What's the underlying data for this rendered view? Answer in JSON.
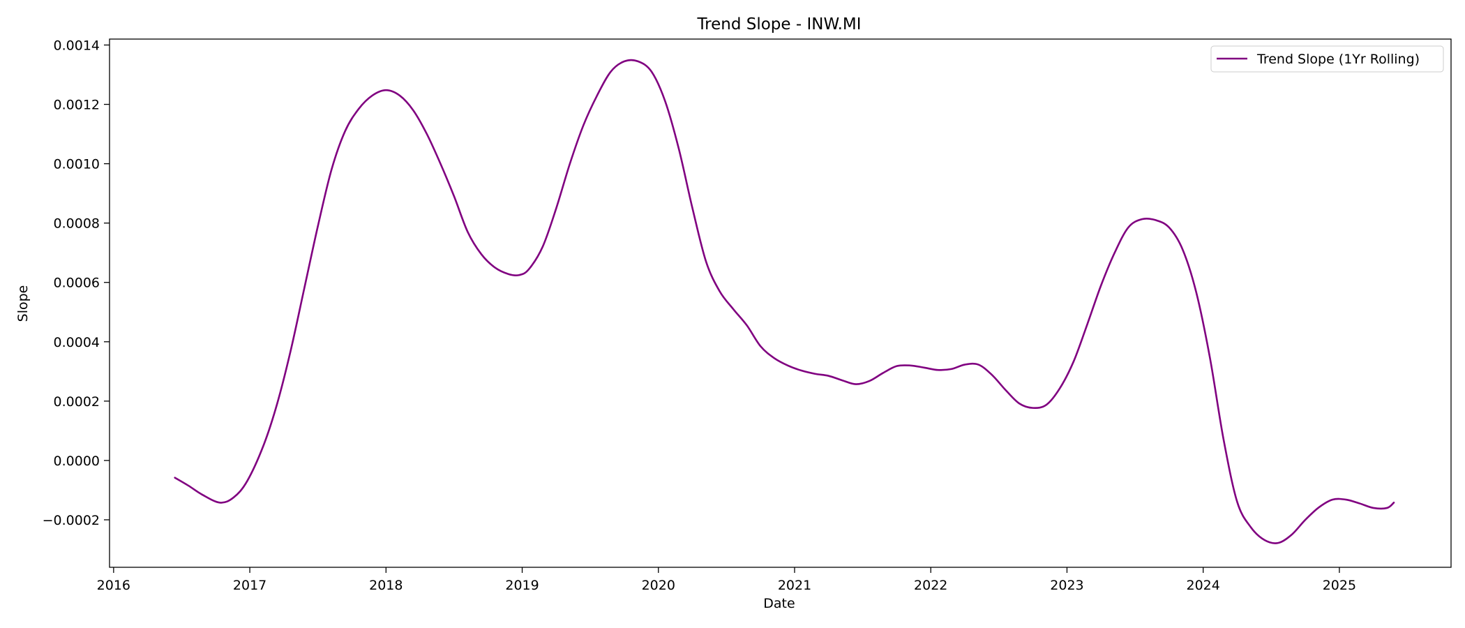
{
  "chart_data": {
    "type": "line",
    "title": "Trend Slope - INW.MI",
    "xlabel": "Date",
    "ylabel": "Slope",
    "xlim": [
      2015.97,
      2025.82
    ],
    "ylim": [
      -0.00036,
      0.00142
    ],
    "x_ticks": [
      2016,
      2017,
      2018,
      2019,
      2020,
      2021,
      2022,
      2023,
      2024,
      2025
    ],
    "y_ticks": [
      -0.0002,
      0.0,
      0.0002,
      0.0004,
      0.0006,
      0.0008,
      0.001,
      0.0012,
      0.0014
    ],
    "y_tick_labels": [
      "−0.0002",
      "0.0000",
      "0.0002",
      "0.0004",
      "0.0006",
      "0.0008",
      "0.0010",
      "0.0012",
      "0.0014"
    ],
    "grid": false,
    "legend_position": "top-right",
    "series": [
      {
        "name": "Trend Slope (1Yr Rolling)",
        "color": "#800080",
        "points": [
          [
            2016.45,
            -5.8e-05
          ],
          [
            2016.55,
            -8.5e-05
          ],
          [
            2016.65,
            -0.000115
          ],
          [
            2016.78,
            -0.000142
          ],
          [
            2016.88,
            -0.000125
          ],
          [
            2016.98,
            -7e-05
          ],
          [
            2017.1,
            5e-05
          ],
          [
            2017.2,
            0.00019
          ],
          [
            2017.3,
            0.00037
          ],
          [
            2017.4,
            0.00058
          ],
          [
            2017.5,
            0.00079
          ],
          [
            2017.6,
            0.00098
          ],
          [
            2017.7,
            0.00111
          ],
          [
            2017.8,
            0.001185
          ],
          [
            2017.9,
            0.00123
          ],
          [
            2018.0,
            0.001248
          ],
          [
            2018.1,
            0.00123
          ],
          [
            2018.2,
            0.00118
          ],
          [
            2018.3,
            0.0011
          ],
          [
            2018.4,
            0.001
          ],
          [
            2018.5,
            0.00089
          ],
          [
            2018.6,
            0.00077
          ],
          [
            2018.7,
            0.000695
          ],
          [
            2018.8,
            0.00065
          ],
          [
            2018.9,
            0.000628
          ],
          [
            2018.98,
            0.000625
          ],
          [
            2019.05,
            0.000645
          ],
          [
            2019.15,
            0.00072
          ],
          [
            2019.25,
            0.00085
          ],
          [
            2019.35,
            0.001
          ],
          [
            2019.45,
            0.00113
          ],
          [
            2019.55,
            0.00123
          ],
          [
            2019.65,
            0.00131
          ],
          [
            2019.75,
            0.001345
          ],
          [
            2019.85,
            0.001345
          ],
          [
            2019.95,
            0.00131
          ],
          [
            2020.05,
            0.00121
          ],
          [
            2020.15,
            0.00105
          ],
          [
            2020.25,
            0.00085
          ],
          [
            2020.35,
            0.00067
          ],
          [
            2020.45,
            0.00057
          ],
          [
            2020.55,
            0.00051
          ],
          [
            2020.65,
            0.000455
          ],
          [
            2020.75,
            0.000385
          ],
          [
            2020.85,
            0.000345
          ],
          [
            2020.95,
            0.00032
          ],
          [
            2021.05,
            0.000303
          ],
          [
            2021.15,
            0.000292
          ],
          [
            2021.25,
            0.000285
          ],
          [
            2021.35,
            0.00027
          ],
          [
            2021.45,
            0.000257
          ],
          [
            2021.55,
            0.000268
          ],
          [
            2021.65,
            0.000295
          ],
          [
            2021.75,
            0.000318
          ],
          [
            2021.85,
            0.00032
          ],
          [
            2021.95,
            0.000313
          ],
          [
            2022.05,
            0.000305
          ],
          [
            2022.15,
            0.000308
          ],
          [
            2022.25,
            0.000323
          ],
          [
            2022.35,
            0.000323
          ],
          [
            2022.45,
            0.000288
          ],
          [
            2022.55,
            0.000237
          ],
          [
            2022.65,
            0.000192
          ],
          [
            2022.75,
            0.000177
          ],
          [
            2022.85,
            0.000188
          ],
          [
            2022.95,
            0.000245
          ],
          [
            2023.05,
            0.000335
          ],
          [
            2023.15,
            0.00046
          ],
          [
            2023.25,
            0.00059
          ],
          [
            2023.35,
            0.0007
          ],
          [
            2023.45,
            0.000785
          ],
          [
            2023.55,
            0.000813
          ],
          [
            2023.65,
            0.00081
          ],
          [
            2023.75,
            0.000785
          ],
          [
            2023.85,
            0.00071
          ],
          [
            2023.95,
            0.000565
          ],
          [
            2024.05,
            0.000345
          ],
          [
            2024.15,
            7e-05
          ],
          [
            2024.25,
            -0.00014
          ],
          [
            2024.35,
            -0.000225
          ],
          [
            2024.45,
            -0.000268
          ],
          [
            2024.55,
            -0.000278
          ],
          [
            2024.65,
            -0.00025
          ],
          [
            2024.75,
            -0.0002
          ],
          [
            2024.85,
            -0.000158
          ],
          [
            2024.95,
            -0.000132
          ],
          [
            2025.05,
            -0.000132
          ],
          [
            2025.15,
            -0.000145
          ],
          [
            2025.25,
            -0.00016
          ],
          [
            2025.35,
            -0.00016
          ],
          [
            2025.4,
            -0.000142
          ]
        ]
      }
    ]
  }
}
